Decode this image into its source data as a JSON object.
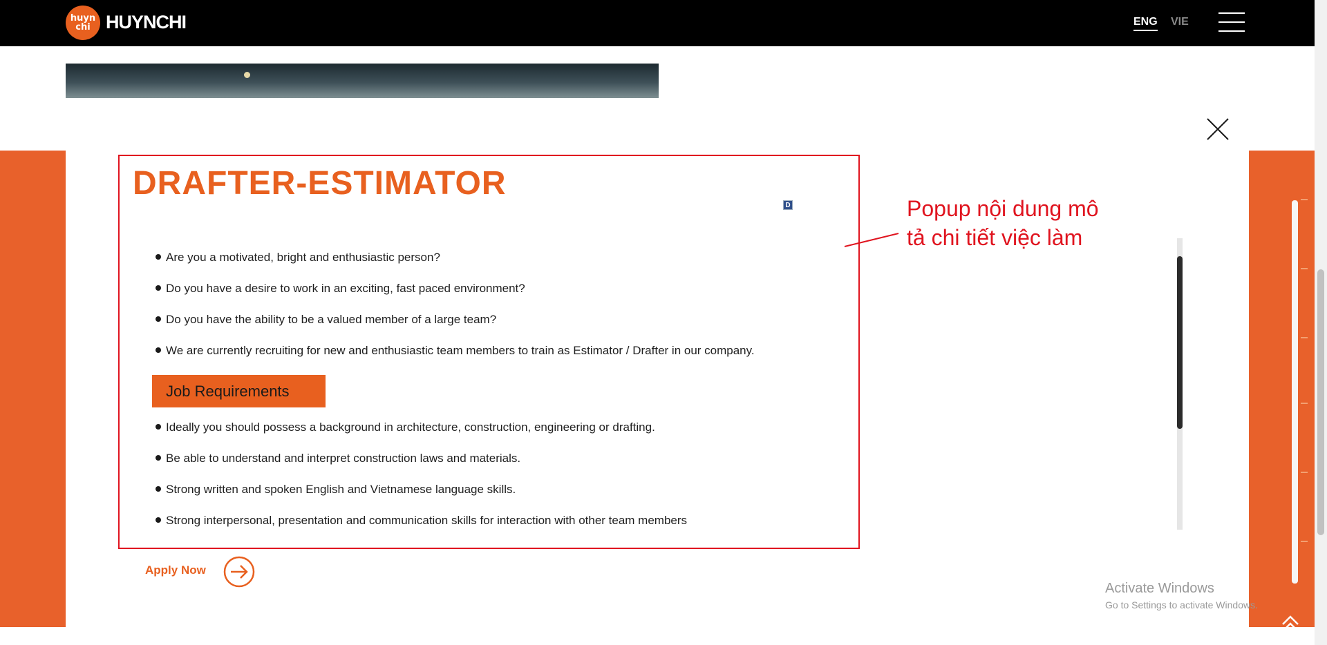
{
  "header": {
    "logo_top": "huyn",
    "logo_bottom": "chi",
    "brand": "HUYNCHI",
    "lang_active": "ENG",
    "lang_other": "VIE"
  },
  "modal": {
    "title": "DRAFTER-ESTIMATOR",
    "badge": "D",
    "intro_items": [
      "Are you a motivated, bright and enthusiastic person?",
      "Do you have a desire to work in an exciting, fast paced environment?",
      "Do you have the ability to be a valued member of a large team?",
      "We are currently recruiting for new and enthusiastic team members to train as Estimator / Drafter in our company."
    ],
    "requirements_heading": "Job Requirements",
    "requirement_items": [
      "Ideally you should possess a background in architecture, construction, engineering or drafting.",
      "Be able to understand and interpret construction laws and materials.",
      "Strong written and spoken English and Vietnamese language skills.",
      "Strong interpersonal, presentation and communication skills for interaction with other team members"
    ],
    "apply_label": "Apply Now"
  },
  "annotation": {
    "line1": "Popup nội dung mô",
    "line2": "tả chi tiết việc làm"
  },
  "watermark": {
    "title": "Activate Windows",
    "subtitle": "Go to Settings to activate Windows."
  },
  "colors": {
    "accent": "#e8601f",
    "annotation": "#e0141f",
    "header_bg": "#000000"
  }
}
